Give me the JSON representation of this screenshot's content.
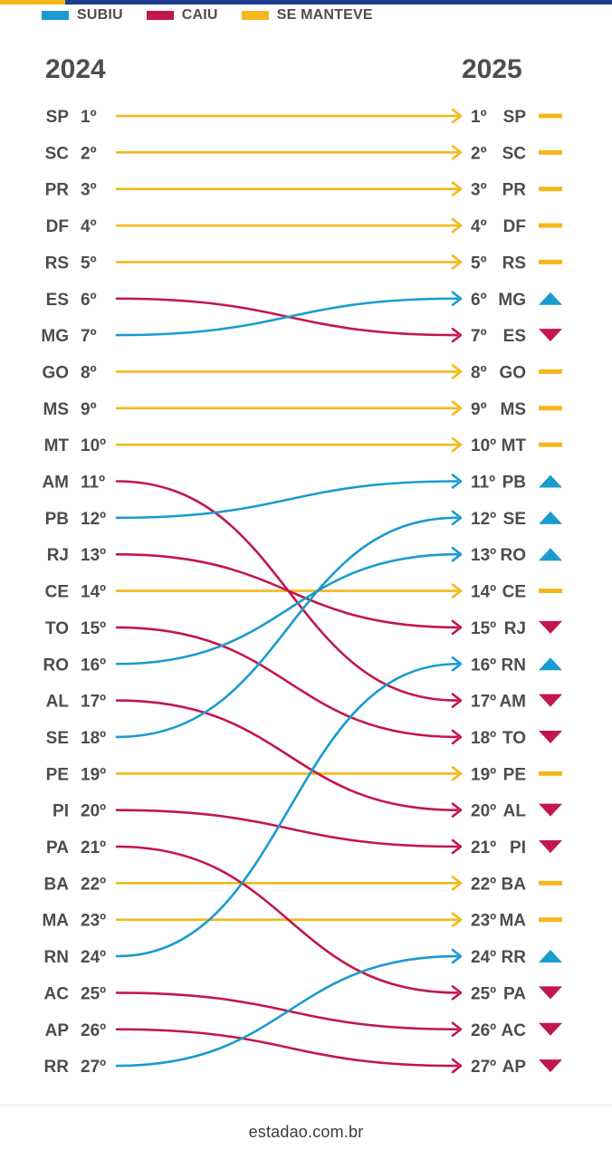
{
  "legend": [
    {
      "label": "SUBIU",
      "color": "#1a9bd0"
    },
    {
      "label": "CAIU",
      "color": "#c2174c"
    },
    {
      "label": "SE MANTEVE",
      "color": "#f4b81c"
    }
  ],
  "footer": "estadao.com.br",
  "chart_data": {
    "type": "slope",
    "x_labels": [
      "2024",
      "2025"
    ],
    "colors": {
      "up": "#1a9bd0",
      "down": "#c2174c",
      "same": "#f4b81c"
    },
    "rank_labels": [
      "1º",
      "2º",
      "3º",
      "4º",
      "5º",
      "6º",
      "7º",
      "8º",
      "9º",
      "10º",
      "11º",
      "12º",
      "13º",
      "14º",
      "15º",
      "16º",
      "17º",
      "18º",
      "19º",
      "20º",
      "21º",
      "22º",
      "23º",
      "24º",
      "25º",
      "26º",
      "27º"
    ],
    "ranks_2024": [
      "SP",
      "SC",
      "PR",
      "DF",
      "RS",
      "ES",
      "MG",
      "GO",
      "MS",
      "MT",
      "AM",
      "PB",
      "RJ",
      "CE",
      "TO",
      "RO",
      "AL",
      "SE",
      "PE",
      "PI",
      "PA",
      "BA",
      "MA",
      "RN",
      "AC",
      "AP",
      "RR"
    ],
    "ranks_2025": [
      "SP",
      "SC",
      "PR",
      "DF",
      "RS",
      "MG",
      "ES",
      "GO",
      "MS",
      "MT",
      "PB",
      "SE",
      "RO",
      "CE",
      "RJ",
      "RN",
      "AM",
      "TO",
      "PE",
      "AL",
      "PI",
      "BA",
      "MA",
      "RR",
      "PA",
      "AC",
      "AP"
    ]
  }
}
